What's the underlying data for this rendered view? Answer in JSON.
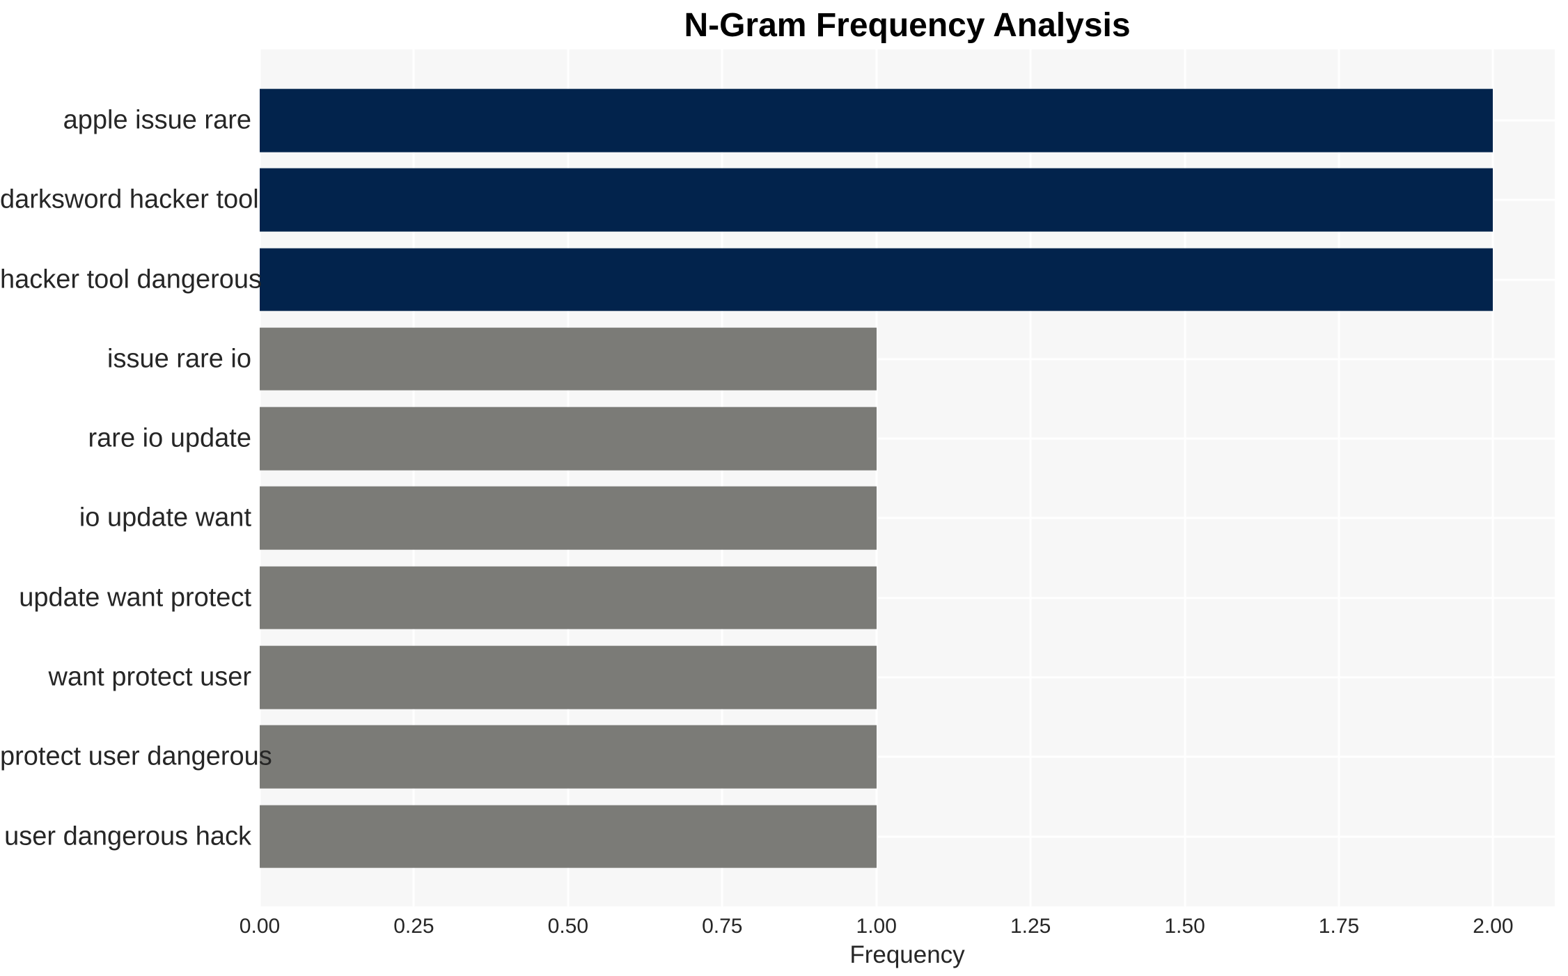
{
  "chart_data": {
    "type": "bar",
    "orientation": "horizontal",
    "title": "N-Gram Frequency Analysis",
    "xlabel": "Frequency",
    "ylabel": "",
    "categories": [
      "apple issue rare",
      "darksword hacker tool",
      "hacker tool dangerous",
      "issue rare io",
      "rare io update",
      "io update want",
      "update want protect",
      "want protect user",
      "protect user dangerous",
      "user dangerous hack"
    ],
    "values": [
      2,
      2,
      2,
      1,
      1,
      1,
      1,
      1,
      1,
      1
    ],
    "bar_colors": [
      "#02234c",
      "#02234c",
      "#02234c",
      "#7b7b77",
      "#7b7b77",
      "#7b7b77",
      "#7b7b77",
      "#7b7b77",
      "#7b7b77",
      "#7b7b77"
    ],
    "xticks": [
      0,
      0.25,
      0.5,
      0.75,
      1.0,
      1.25,
      1.5,
      1.75,
      2.0
    ],
    "xtick_labels": [
      "0.00",
      "0.25",
      "0.50",
      "0.75",
      "1.00",
      "1.25",
      "1.50",
      "1.75",
      "2.00"
    ],
    "xlim": [
      0,
      2.1
    ],
    "grid": true,
    "legend": null
  },
  "styles": {
    "figure_bg": "#ffffff",
    "panel_bg": "#f7f7f7",
    "grid_color": "#ffffff",
    "bar_color_high": "#02234c",
    "bar_color_low": "#7b7b77",
    "text_color": "#262626",
    "title_color": "#000000"
  }
}
